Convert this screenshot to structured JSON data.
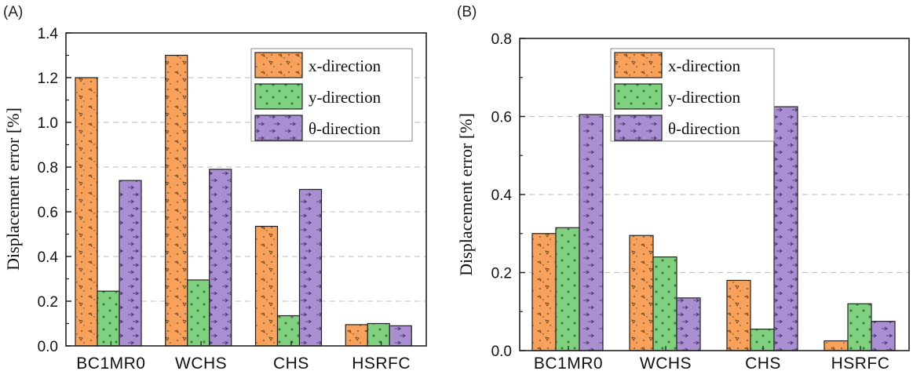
{
  "chart_data": [
    {
      "panel_label": "(A)",
      "type": "bar",
      "ylabel": "Displacement error [%]",
      "ylim": [
        0,
        1.4
      ],
      "yticks": [
        "0.0",
        "0.2",
        "0.4",
        "0.6",
        "0.8",
        "1.0",
        "1.2",
        "1.4"
      ],
      "grid": "horizontal dashed",
      "legend_position": "top-right",
      "categories": [
        "BC1MR0",
        "WCHS",
        "CHS",
        "HSRFC"
      ],
      "series": [
        {
          "name": "x-direction",
          "color": "#f8a15a",
          "values": [
            1.2,
            1.3,
            0.535,
            0.095
          ]
        },
        {
          "name": "y-direction",
          "color": "#7fd17f",
          "values": [
            0.245,
            0.295,
            0.135,
            0.1
          ]
        },
        {
          "name": "θ-direction",
          "color": "#a98fd1",
          "values": [
            0.74,
            0.79,
            0.7,
            0.09
          ]
        }
      ]
    },
    {
      "panel_label": "(B)",
      "type": "bar",
      "ylabel": "Displacement error [%]",
      "ylim": [
        0,
        0.8
      ],
      "yticks": [
        "0.0",
        "0.2",
        "0.4",
        "0.6",
        "0.8"
      ],
      "grid": "horizontal dashed",
      "legend_position": "top-center",
      "categories": [
        "BC1MR0",
        "WCHS",
        "CHS",
        "HSRFC"
      ],
      "series": [
        {
          "name": "x-direction",
          "color": "#f8a15a",
          "values": [
            0.3,
            0.295,
            0.18,
            0.025
          ]
        },
        {
          "name": "y-direction",
          "color": "#7fd17f",
          "values": [
            0.315,
            0.24,
            0.055,
            0.12
          ]
        },
        {
          "name": "θ-direction",
          "color": "#a98fd1",
          "values": [
            0.605,
            0.135,
            0.625,
            0.075
          ]
        }
      ]
    }
  ]
}
